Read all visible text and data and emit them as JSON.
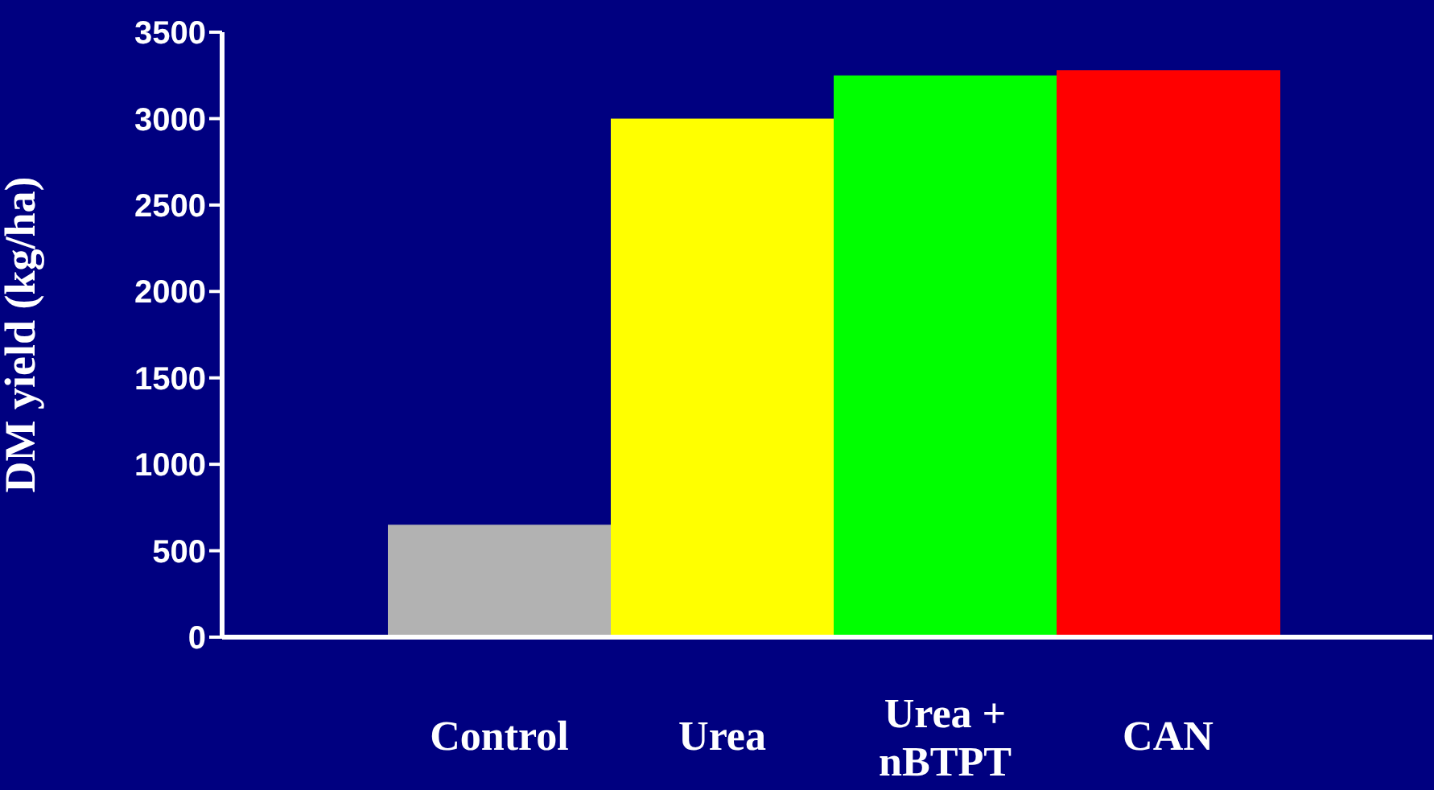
{
  "chart_data": {
    "type": "bar",
    "ylabel": "DM yield (kg/ha)",
    "categories": [
      "Control",
      "Urea",
      "Urea + nBTPT",
      "CAN"
    ],
    "values": [
      650,
      3000,
      3250,
      3280
    ],
    "colors": [
      "#b2b2b2",
      "#ffff00",
      "#00ff00",
      "#ff0000"
    ],
    "ylim": [
      0,
      3500
    ],
    "yticks": [
      0,
      500,
      1000,
      1500,
      2000,
      2500,
      3000,
      3500
    ],
    "grid": false,
    "legend": false
  }
}
